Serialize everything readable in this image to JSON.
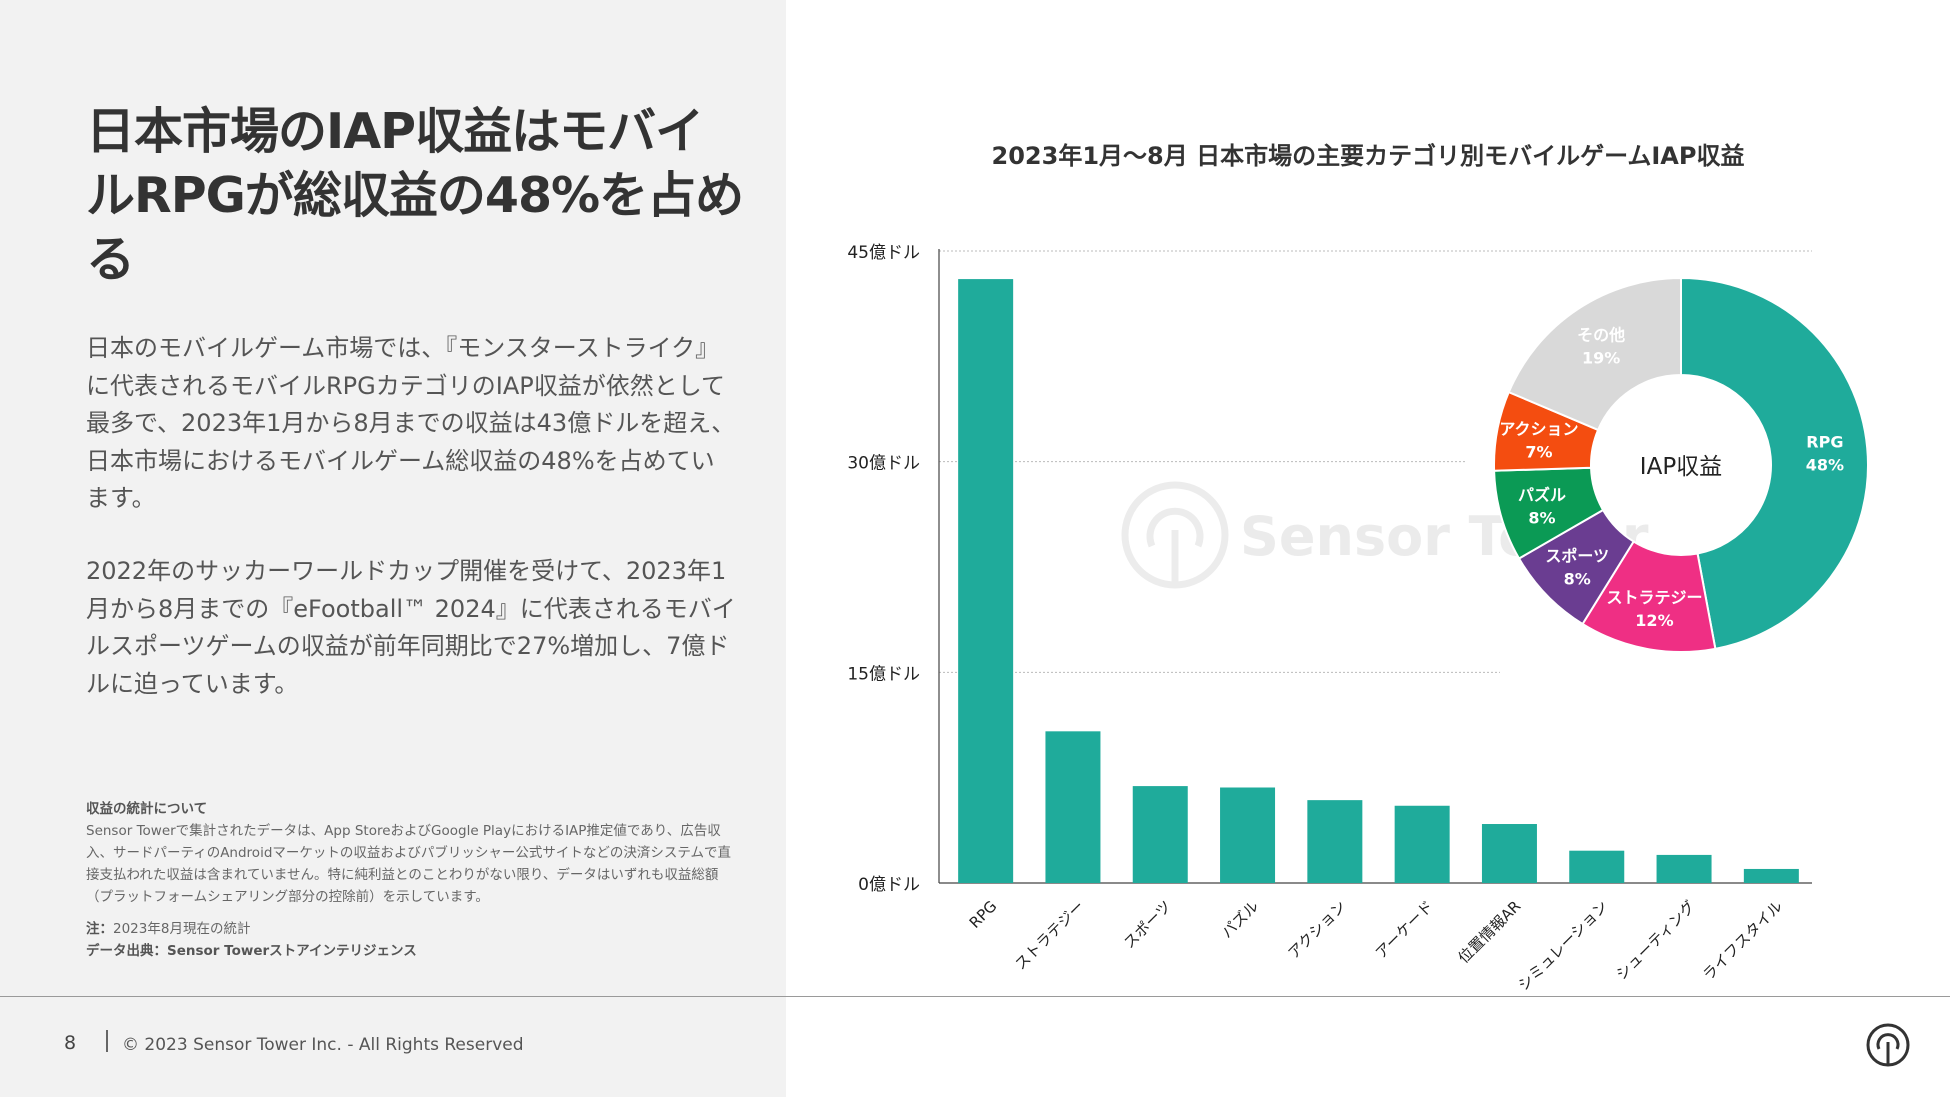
{
  "headline": "日本市場のIAP収益はモバイルRPGが総収益の48%を占める",
  "paragraphs": [
    "日本のモバイルゲーム市場では、『モンスターストライク』に代表されるモバイルRPGカテゴリのIAP収益が依然として最多で、2023年1月から8月までの収益は43億ドルを超え、日本市場におけるモバイルゲーム総収益の48%を占めています。",
    "2022年のサッカーワールドカップ開催を受けて、2023年1月から8月までの『eFootball™ 2024』に代表されるモバイルスポーツゲームの収益が前年同期比で27%増加し、7億ドルに迫っています。"
  ],
  "notes": {
    "heading": "収益の統計について",
    "body": "Sensor Towerで集計されたデータは、App StoreおよびGoogle PlayにおけるIAP推定値であり、広告収入、サードパーティのAndroidマーケットの収益およびパブリッシャー公式サイトなどの決済システムで直接支払われた収益は含まれていません。特に純利益とのことわりがない限り、データはいずれも収益総額（プラットフォームシェアリング部分の控除前）を示しています。",
    "note_label": "注：",
    "note_text": "2023年8月現在の統計",
    "source": "データ出典：Sensor Towerストアインテリジェンス"
  },
  "footer": {
    "page": "8",
    "copyright": "© 2023 Sensor Tower Inc. - All Rights Reserved"
  },
  "watermark": "Sensor Tower",
  "chart_data": [
    {
      "type": "bar",
      "title": "2023年1月〜8月 日本市場の主要カテゴリ別モバイルゲームIAP収益",
      "categories": [
        "RPG",
        "ストラテジー",
        "スポーツ",
        "パズル",
        "アクション",
        "アーケード",
        "位置情報AR",
        "シミュレーション",
        "シューティング",
        "ライフスタイル"
      ],
      "values": [
        43.0,
        10.8,
        6.9,
        6.8,
        5.9,
        5.5,
        4.2,
        2.3,
        2.0,
        1.0
      ],
      "unit": "億ドル",
      "ylim": [
        0,
        45
      ],
      "yticks": [
        0,
        15,
        30,
        45
      ],
      "ytick_labels": [
        "0億ドル",
        "15億ドル",
        "30億ドル",
        "45億ドル"
      ],
      "grid": true,
      "color": "#1fab9b"
    },
    {
      "type": "pie",
      "donut": true,
      "center_label": "IAP収益",
      "slices": [
        {
          "label": "RPG",
          "value": 48,
          "display": "48%",
          "color": "#1fab9b",
          "text_color": "#ffffff"
        },
        {
          "label": "ストラテジー",
          "value": 12,
          "display": "12%",
          "color": "#ef2f84",
          "text_color": "#ffffff"
        },
        {
          "label": "スポーツ",
          "value": 8,
          "display": "8%",
          "color": "#6a3d91",
          "text_color": "#ffffff"
        },
        {
          "label": "パズル",
          "value": 8,
          "display": "8%",
          "color": "#0b9a55",
          "text_color": "#ffffff"
        },
        {
          "label": "アクション",
          "value": 7,
          "display": "7%",
          "color": "#f44d10",
          "text_color": "#ffffff"
        },
        {
          "label": "その他",
          "value": 19,
          "display": "19%",
          "color": "#d9d9d9",
          "text_color": "#ffffff"
        }
      ]
    }
  ]
}
